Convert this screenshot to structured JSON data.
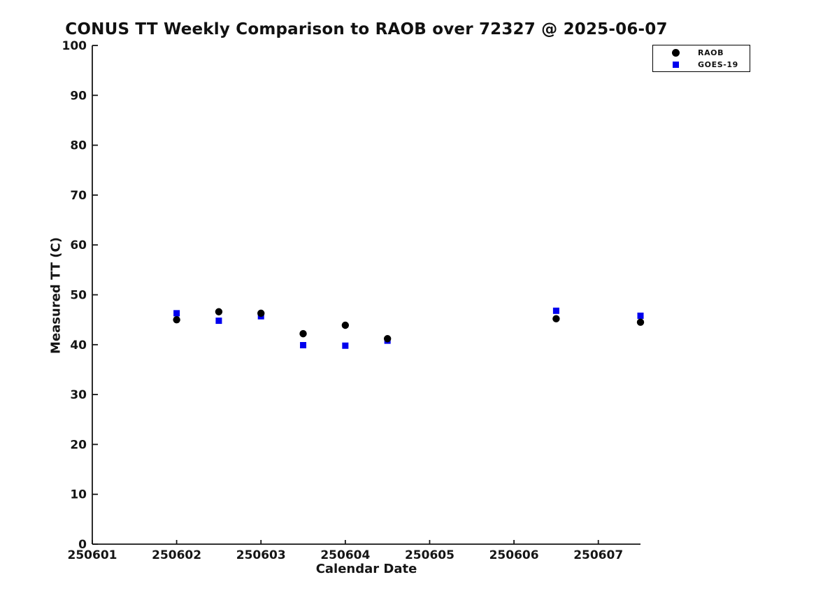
{
  "title": "CONUS TT Weekly Comparison to RAOB over 72327 @ 2025-06-07",
  "colors": {
    "raob": "#000000",
    "goes19": "#0000ee",
    "axis": "#151515",
    "background": "#ffffff"
  },
  "legend": {
    "position": "top-right",
    "entries": [
      {
        "label": "RAOB",
        "marker": "circle",
        "color": "#000000"
      },
      {
        "label": "GOES-19",
        "marker": "square",
        "color": "#0000ee"
      }
    ]
  },
  "chart_data": {
    "type": "scatter",
    "title": "CONUS TT Weekly Comparison to RAOB over 72327 @ 2025-06-07",
    "xlabel": "Calendar Date",
    "ylabel": "Measured TT (C)",
    "xlim": [
      250601,
      250607.5
    ],
    "ylim": [
      0,
      100
    ],
    "x_ticks": [
      250601,
      250602,
      250603,
      250604,
      250605,
      250606,
      250607
    ],
    "x_tick_labels": [
      "250601",
      "250602",
      "250603",
      "250604",
      "250605",
      "250606",
      "250607"
    ],
    "y_ticks": [
      0,
      10,
      20,
      30,
      40,
      50,
      60,
      70,
      80,
      90,
      100
    ],
    "y_tick_labels": [
      "0",
      "10",
      "20",
      "30",
      "40",
      "50",
      "60",
      "70",
      "80",
      "90",
      "100"
    ],
    "grid": false,
    "legend_position": "top-right",
    "series": [
      {
        "name": "RAOB",
        "marker": "circle",
        "color": "#000000",
        "x": [
          250602.0,
          250602.5,
          250603.0,
          250603.5,
          250604.0,
          250604.5,
          250606.5,
          250607.5
        ],
        "y": [
          45.0,
          46.6,
          46.3,
          42.2,
          43.9,
          41.2,
          45.2,
          44.5
        ]
      },
      {
        "name": "GOES-19",
        "marker": "square",
        "color": "#0000ee",
        "x": [
          250602.0,
          250602.5,
          250603.0,
          250603.5,
          250604.0,
          250604.5,
          250606.5,
          250607.5
        ],
        "y": [
          46.3,
          44.8,
          45.7,
          39.9,
          39.8,
          40.8,
          46.8,
          45.8
        ]
      }
    ]
  }
}
